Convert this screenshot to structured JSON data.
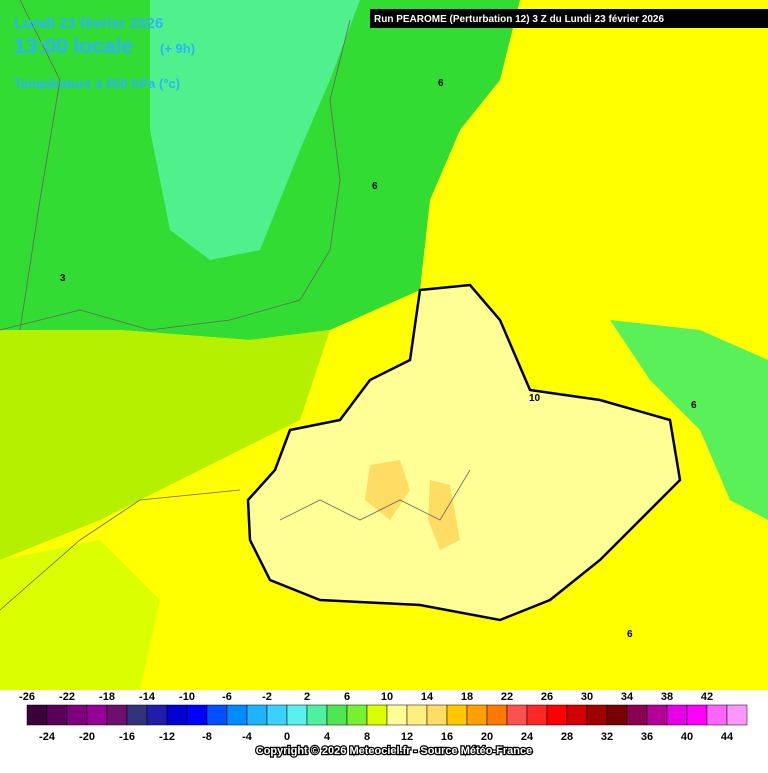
{
  "header": {
    "date": "Lundi 23 février 2026",
    "time": "13:00 locale",
    "offset": "(+ 9h)",
    "parameter": "Température à 850 hPa (°c)",
    "run": "Run PEAROME (Perturbation 12) 3 Z du Lundi 23 février 2026"
  },
  "map_labels": [
    "6",
    "6",
    "3",
    "10",
    "6",
    "6"
  ],
  "colorbar": {
    "top_ticks": [
      -26,
      -22,
      -18,
      -14,
      -10,
      -6,
      -2,
      2,
      6,
      10,
      14,
      18,
      22,
      26,
      30,
      34,
      38,
      42
    ],
    "bottom_ticks": [
      -24,
      -20,
      -16,
      -12,
      -8,
      -4,
      0,
      4,
      8,
      12,
      16,
      20,
      24,
      28,
      32,
      36,
      40,
      44
    ],
    "lim": [
      -26,
      46
    ],
    "colors": [
      "#3c003c",
      "#5a005a",
      "#7d007d",
      "#960096",
      "#6e0f6e",
      "#32327d",
      "#1e1eaa",
      "#0000d2",
      "#0000ff",
      "#0050ff",
      "#008cff",
      "#1eb4ff",
      "#3cd2ff",
      "#5af0f0",
      "#50f0a0",
      "#50e650",
      "#78f032",
      "#dcff00",
      "#ffff96",
      "#fff07d",
      "#ffdc64",
      "#ffc800",
      "#ffa000",
      "#ff7800",
      "#ff5050",
      "#ff2828",
      "#ff0000",
      "#d20000",
      "#a00000",
      "#780000",
      "#8c0050",
      "#b40096",
      "#e600e6",
      "#ff00ff",
      "#ff64ff",
      "#ff96ff"
    ]
  },
  "footer": {
    "copyright": "Copyright © 2026 Meteociel.fr - Source Météo-France"
  }
}
